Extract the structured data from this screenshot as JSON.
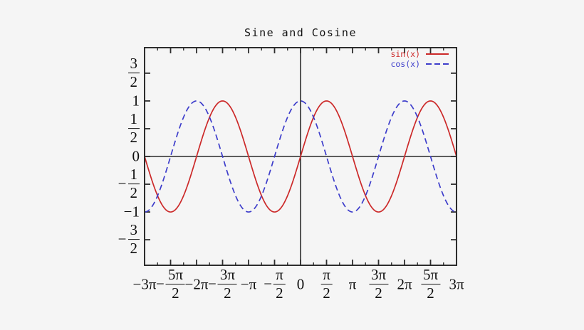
{
  "title": "Sine and Cosine",
  "colors": {
    "background": "#f5f5f5",
    "frame": "#2d2d2d",
    "zero_axis": "#000000",
    "tick_text": "#0e0e0e",
    "sin": "#cc2929",
    "cos": "#3d3dcb"
  },
  "legend": {
    "position": "top-right",
    "entries": [
      {
        "label": "sin(x)",
        "color": "#cc2929",
        "style": "solid"
      },
      {
        "label": "cos(x)",
        "color": "#3d3dcb",
        "style": "dashed"
      }
    ]
  },
  "chart_data": {
    "type": "line",
    "title": "Sine and Cosine",
    "xlim_pi": [
      -3,
      3
    ],
    "ylim": [
      -1.96,
      1.96
    ],
    "grid": false,
    "legend_position": "top-right",
    "x_major_tick_step_pi": 0.5,
    "x_minor_tick_step_pi": 0.25,
    "y_major_tick_step": 0.5,
    "x_ticks": [
      {
        "value_pi": -3,
        "label": "-3π"
      },
      {
        "value_pi": -2.5,
        "label": "-5π/2"
      },
      {
        "value_pi": -2,
        "label": "-2π"
      },
      {
        "value_pi": -1.5,
        "label": "-3π/2"
      },
      {
        "value_pi": -1,
        "label": "-π"
      },
      {
        "value_pi": -0.5,
        "label": "-π/2"
      },
      {
        "value_pi": 0,
        "label": "0"
      },
      {
        "value_pi": 0.5,
        "label": "π/2"
      },
      {
        "value_pi": 1,
        "label": "π"
      },
      {
        "value_pi": 1.5,
        "label": "3π/2"
      },
      {
        "value_pi": 2,
        "label": "2π"
      },
      {
        "value_pi": 2.5,
        "label": "5π/2"
      },
      {
        "value_pi": 3,
        "label": "3π"
      }
    ],
    "y_ticks": [
      {
        "value": 1.5,
        "label": "3/2"
      },
      {
        "value": 1,
        "label": "1"
      },
      {
        "value": 0.5,
        "label": "1/2"
      },
      {
        "value": 0,
        "label": "0"
      },
      {
        "value": -0.5,
        "label": "-1/2"
      },
      {
        "value": -1,
        "label": "-1"
      },
      {
        "value": -1.5,
        "label": "-3/2"
      }
    ],
    "series": [
      {
        "name": "sin(x)",
        "fn": "sin",
        "color": "#cc2929",
        "line": "solid",
        "x_pi": [
          -3,
          -2.75,
          -2.5,
          -2.25,
          -2,
          -1.75,
          -1.5,
          -1.25,
          -1,
          -0.75,
          -0.5,
          -0.25,
          0,
          0.25,
          0.5,
          0.75,
          1,
          1.25,
          1.5,
          1.75,
          2,
          2.25,
          2.5,
          2.75,
          3
        ],
        "y": [
          0,
          -0.707,
          -1,
          -0.707,
          0,
          0.707,
          1,
          0.707,
          0,
          -0.707,
          -1,
          -0.707,
          0,
          0.707,
          1,
          0.707,
          0,
          -0.707,
          -1,
          -0.707,
          0,
          0.707,
          1,
          0.707,
          0
        ]
      },
      {
        "name": "cos(x)",
        "fn": "cos",
        "color": "#3d3dcb",
        "line": "dashed",
        "x_pi": [
          -3,
          -2.75,
          -2.5,
          -2.25,
          -2,
          -1.75,
          -1.5,
          -1.25,
          -1,
          -0.75,
          -0.5,
          -0.25,
          0,
          0.25,
          0.5,
          0.75,
          1,
          1.25,
          1.5,
          1.75,
          2,
          2.25,
          2.5,
          2.75,
          3
        ],
        "y": [
          -1,
          -0.707,
          0,
          0.707,
          1,
          0.707,
          0,
          -0.707,
          -1,
          -0.707,
          0,
          0.707,
          1,
          0.707,
          0,
          -0.707,
          -1,
          -0.707,
          0,
          0.707,
          1,
          0.707,
          0,
          -0.707,
          -1
        ]
      }
    ]
  }
}
